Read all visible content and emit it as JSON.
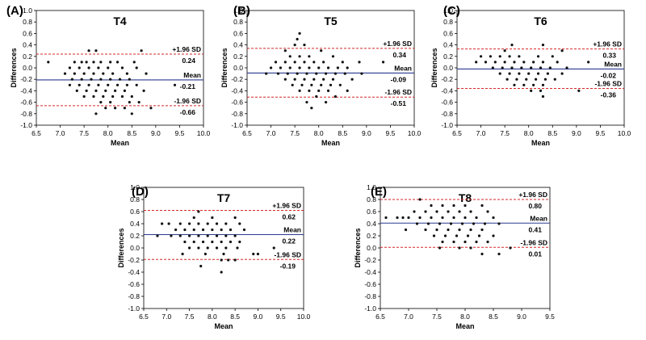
{
  "chart_data": [
    {
      "type": "scatter",
      "panel_label": "(A)",
      "title": "T4",
      "xlabel": "Mean",
      "ylabel": "Differences",
      "xlim": [
        6.5,
        10.0
      ],
      "ylim": [
        -1.0,
        1.0
      ],
      "xticks": [
        "6.5",
        "7.0",
        "7.5",
        "8.0",
        "8.5",
        "9.0",
        "9.5",
        "10.0"
      ],
      "yticks": [
        "-1.0",
        "-0.8",
        "-0.6",
        "-0.4",
        "-0.2",
        "0.0",
        "0.2",
        "0.4",
        "0.6",
        "0.8",
        "1.0"
      ],
      "upper_label": "+1.96 SD",
      "upper_value": "0.24",
      "upper": 0.24,
      "mean_label": "Mean",
      "mean_value": "-0.21",
      "mean": -0.21,
      "lower_label": "-1.96 SD",
      "lower_value": "-0.66",
      "lower": -0.66,
      "points": [
        [
          6.75,
          0.1
        ],
        [
          7.6,
          0.3
        ],
        [
          7.75,
          0.3
        ],
        [
          8.7,
          0.3
        ],
        [
          7.3,
          0.1
        ],
        [
          7.45,
          0.1
        ],
        [
          7.55,
          0.1
        ],
        [
          7.7,
          0.1
        ],
        [
          7.85,
          0.1
        ],
        [
          8.05,
          0.1
        ],
        [
          8.2,
          0.1
        ],
        [
          8.55,
          0.1
        ],
        [
          7.2,
          0.0
        ],
        [
          7.4,
          0.0
        ],
        [
          7.6,
          0.0
        ],
        [
          7.8,
          0.0
        ],
        [
          8.0,
          0.0
        ],
        [
          8.3,
          0.0
        ],
        [
          8.6,
          0.0
        ],
        [
          7.1,
          -0.1
        ],
        [
          7.3,
          -0.1
        ],
        [
          7.5,
          -0.1
        ],
        [
          7.7,
          -0.1
        ],
        [
          7.9,
          -0.1
        ],
        [
          8.1,
          -0.1
        ],
        [
          8.4,
          -0.1
        ],
        [
          8.8,
          -0.1
        ],
        [
          7.25,
          -0.2
        ],
        [
          7.45,
          -0.2
        ],
        [
          7.65,
          -0.2
        ],
        [
          7.85,
          -0.2
        ],
        [
          8.05,
          -0.2
        ],
        [
          8.25,
          -0.2
        ],
        [
          8.45,
          -0.2
        ],
        [
          7.2,
          -0.3
        ],
        [
          7.4,
          -0.3
        ],
        [
          7.6,
          -0.3
        ],
        [
          7.8,
          -0.3
        ],
        [
          8.0,
          -0.3
        ],
        [
          8.2,
          -0.3
        ],
        [
          8.4,
          -0.3
        ],
        [
          8.6,
          -0.3
        ],
        [
          9.4,
          -0.3
        ],
        [
          7.35,
          -0.4
        ],
        [
          7.55,
          -0.4
        ],
        [
          7.75,
          -0.4
        ],
        [
          7.95,
          -0.4
        ],
        [
          8.15,
          -0.4
        ],
        [
          8.35,
          -0.4
        ],
        [
          8.75,
          -0.4
        ],
        [
          7.5,
          -0.5
        ],
        [
          7.7,
          -0.5
        ],
        [
          7.9,
          -0.5
        ],
        [
          8.1,
          -0.5
        ],
        [
          8.3,
          -0.5
        ],
        [
          8.5,
          -0.5
        ],
        [
          7.85,
          -0.6
        ],
        [
          8.05,
          -0.6
        ],
        [
          8.45,
          -0.6
        ],
        [
          8.65,
          -0.6
        ],
        [
          7.95,
          -0.7
        ],
        [
          8.15,
          -0.7
        ],
        [
          8.35,
          -0.7
        ],
        [
          8.9,
          -0.7
        ],
        [
          7.75,
          -0.8
        ],
        [
          8.5,
          -0.8
        ]
      ]
    },
    {
      "type": "scatter",
      "panel_label": "(B)",
      "title": "T5",
      "xlabel": "Mean",
      "ylabel": "Differences",
      "xlim": [
        6.5,
        10.0
      ],
      "ylim": [
        -1.0,
        1.0
      ],
      "xticks": [
        "6.5",
        "7.0",
        "7.5",
        "8.0",
        "8.5",
        "9.0",
        "9.5",
        "10.0"
      ],
      "yticks": [
        "-1.0",
        "-0.8",
        "-0.6",
        "-0.4",
        "-0.2",
        "0.0",
        "0.2",
        "0.4",
        "0.6",
        "0.8",
        "1.0"
      ],
      "upper_label": "+1.96 SD",
      "upper_value": "0.34",
      "upper": 0.34,
      "mean_label": "Mean",
      "mean_value": "-0.09",
      "mean": -0.09,
      "lower_label": "-1.96 SD",
      "lower_value": "-0.51",
      "lower": -0.51,
      "points": [
        [
          7.6,
          0.6
        ],
        [
          7.55,
          0.5
        ],
        [
          7.5,
          0.4
        ],
        [
          7.7,
          0.4
        ],
        [
          8.05,
          0.3
        ],
        [
          7.3,
          0.3
        ],
        [
          7.4,
          0.2
        ],
        [
          7.6,
          0.2
        ],
        [
          7.8,
          0.2
        ],
        [
          8.3,
          0.2
        ],
        [
          7.1,
          0.1
        ],
        [
          7.3,
          0.1
        ],
        [
          7.5,
          0.1
        ],
        [
          7.7,
          0.1
        ],
        [
          7.9,
          0.1
        ],
        [
          8.1,
          0.1
        ],
        [
          8.5,
          0.1
        ],
        [
          8.85,
          0.1
        ],
        [
          9.35,
          0.1
        ],
        [
          7.0,
          0.0
        ],
        [
          7.2,
          0.0
        ],
        [
          7.4,
          0.0
        ],
        [
          7.6,
          0.0
        ],
        [
          7.8,
          0.0
        ],
        [
          8.0,
          0.0
        ],
        [
          8.2,
          0.0
        ],
        [
          8.4,
          0.0
        ],
        [
          8.6,
          0.0
        ],
        [
          6.9,
          -0.1
        ],
        [
          7.15,
          -0.1
        ],
        [
          7.35,
          -0.1
        ],
        [
          7.55,
          -0.1
        ],
        [
          7.75,
          -0.1
        ],
        [
          7.95,
          -0.1
        ],
        [
          8.15,
          -0.1
        ],
        [
          8.35,
          -0.1
        ],
        [
          8.55,
          -0.1
        ],
        [
          8.9,
          -0.1
        ],
        [
          7.3,
          -0.2
        ],
        [
          7.5,
          -0.2
        ],
        [
          7.7,
          -0.2
        ],
        [
          7.9,
          -0.2
        ],
        [
          8.1,
          -0.2
        ],
        [
          8.3,
          -0.2
        ],
        [
          8.7,
          -0.2
        ],
        [
          7.45,
          -0.3
        ],
        [
          7.65,
          -0.3
        ],
        [
          7.85,
          -0.3
        ],
        [
          8.05,
          -0.3
        ],
        [
          8.25,
          -0.3
        ],
        [
          8.45,
          -0.3
        ],
        [
          7.6,
          -0.4
        ],
        [
          7.8,
          -0.4
        ],
        [
          8.0,
          -0.4
        ],
        [
          8.2,
          -0.4
        ],
        [
          8.6,
          -0.4
        ],
        [
          7.95,
          -0.5
        ],
        [
          8.35,
          -0.5
        ],
        [
          7.75,
          -0.6
        ],
        [
          8.15,
          -0.6
        ],
        [
          7.85,
          -0.7
        ]
      ]
    },
    {
      "type": "scatter",
      "panel_label": "(C)",
      "title": "T6",
      "xlabel": "Mean",
      "ylabel": "Differences",
      "xlim": [
        6.5,
        10.0
      ],
      "ylim": [
        -1.0,
        1.0
      ],
      "xticks": [
        "6.5",
        "7.0",
        "7.5",
        "8.0",
        "8.5",
        "9.0",
        "9.5",
        "10.0"
      ],
      "yticks": [
        "-1.0",
        "-0.8",
        "-0.6",
        "-0.4",
        "-0.2",
        "0.0",
        "0.2",
        "0.4",
        "0.6",
        "0.8",
        "1.0"
      ],
      "upper_label": "+1.96 SD",
      "upper_value": "0.33",
      "upper": 0.33,
      "mean_label": "Mean",
      "mean_value": "-0.02",
      "mean": -0.02,
      "lower_label": "-1.96 SD",
      "lower_value": "-0.36",
      "lower": -0.36,
      "points": [
        [
          7.65,
          0.4
        ],
        [
          8.3,
          0.4
        ],
        [
          7.5,
          0.3
        ],
        [
          8.7,
          0.3
        ],
        [
          7.0,
          0.2
        ],
        [
          7.2,
          0.2
        ],
        [
          7.4,
          0.2
        ],
        [
          7.6,
          0.2
        ],
        [
          7.8,
          0.2
        ],
        [
          8.2,
          0.2
        ],
        [
          8.5,
          0.2
        ],
        [
          6.9,
          0.1
        ],
        [
          7.1,
          0.1
        ],
        [
          7.3,
          0.1
        ],
        [
          7.5,
          0.1
        ],
        [
          7.7,
          0.1
        ],
        [
          7.9,
          0.1
        ],
        [
          8.1,
          0.1
        ],
        [
          8.3,
          0.1
        ],
        [
          8.6,
          0.1
        ],
        [
          9.25,
          0.1
        ],
        [
          7.25,
          0.0
        ],
        [
          7.45,
          0.0
        ],
        [
          7.65,
          0.0
        ],
        [
          7.85,
          0.0
        ],
        [
          8.05,
          0.0
        ],
        [
          8.25,
          0.0
        ],
        [
          8.45,
          0.0
        ],
        [
          8.8,
          0.0
        ],
        [
          7.4,
          -0.1
        ],
        [
          7.6,
          -0.1
        ],
        [
          7.8,
          -0.1
        ],
        [
          8.0,
          -0.1
        ],
        [
          8.2,
          -0.1
        ],
        [
          8.4,
          -0.1
        ],
        [
          8.7,
          -0.1
        ],
        [
          7.55,
          -0.2
        ],
        [
          7.75,
          -0.2
        ],
        [
          7.95,
          -0.2
        ],
        [
          8.15,
          -0.2
        ],
        [
          8.35,
          -0.2
        ],
        [
          8.55,
          -0.2
        ],
        [
          7.7,
          -0.3
        ],
        [
          7.9,
          -0.3
        ],
        [
          8.1,
          -0.3
        ],
        [
          8.3,
          -0.3
        ],
        [
          8.05,
          -0.4
        ],
        [
          8.25,
          -0.4
        ],
        [
          9.05,
          -0.4
        ],
        [
          8.3,
          -0.5
        ]
      ]
    },
    {
      "type": "scatter",
      "panel_label": "(D)",
      "title": "T7",
      "xlabel": "Mean",
      "ylabel": "Differences",
      "xlim": [
        6.5,
        10.0
      ],
      "ylim": [
        -1.0,
        1.0
      ],
      "xticks": [
        "6.5",
        "7.0",
        "7.5",
        "8.0",
        "8.5",
        "9.0",
        "9.5",
        "10.0"
      ],
      "yticks": [
        "-1.0",
        "-0.8",
        "-0.6",
        "-0.4",
        "-0.2",
        "0.0",
        "0.2",
        "0.4",
        "0.6",
        "0.8",
        "1.0"
      ],
      "upper_label": "+1.96 SD",
      "upper_value": "0.62",
      "upper": 0.62,
      "mean_label": "Mean",
      "mean_value": "0.22",
      "mean": 0.22,
      "lower_label": "-1.96 SD",
      "lower_value": "-0.19",
      "lower": -0.19,
      "points": [
        [
          7.7,
          0.6
        ],
        [
          7.6,
          0.5
        ],
        [
          8.0,
          0.5
        ],
        [
          8.5,
          0.5
        ],
        [
          6.9,
          0.4
        ],
        [
          7.05,
          0.4
        ],
        [
          7.3,
          0.4
        ],
        [
          7.5,
          0.4
        ],
        [
          7.7,
          0.4
        ],
        [
          7.9,
          0.4
        ],
        [
          8.1,
          0.4
        ],
        [
          8.3,
          0.4
        ],
        [
          8.6,
          0.4
        ],
        [
          7.2,
          0.3
        ],
        [
          7.4,
          0.3
        ],
        [
          7.6,
          0.3
        ],
        [
          7.8,
          0.3
        ],
        [
          8.0,
          0.3
        ],
        [
          8.2,
          0.3
        ],
        [
          8.4,
          0.3
        ],
        [
          8.7,
          0.3
        ],
        [
          6.8,
          0.2
        ],
        [
          7.1,
          0.2
        ],
        [
          7.3,
          0.2
        ],
        [
          7.5,
          0.2
        ],
        [
          7.7,
          0.2
        ],
        [
          7.9,
          0.2
        ],
        [
          8.1,
          0.2
        ],
        [
          8.3,
          0.2
        ],
        [
          8.5,
          0.2
        ],
        [
          7.4,
          0.1
        ],
        [
          7.6,
          0.1
        ],
        [
          7.8,
          0.1
        ],
        [
          8.0,
          0.1
        ],
        [
          8.2,
          0.1
        ],
        [
          8.4,
          0.1
        ],
        [
          8.6,
          0.1
        ],
        [
          7.5,
          0.0
        ],
        [
          7.7,
          0.0
        ],
        [
          7.9,
          0.0
        ],
        [
          8.1,
          0.0
        ],
        [
          8.3,
          0.0
        ],
        [
          8.55,
          0.0
        ],
        [
          9.35,
          0.0
        ],
        [
          7.35,
          -0.1
        ],
        [
          7.85,
          -0.1
        ],
        [
          8.25,
          -0.1
        ],
        [
          8.9,
          -0.1
        ],
        [
          9.0,
          -0.1
        ],
        [
          8.2,
          -0.2
        ],
        [
          8.35,
          -0.2
        ],
        [
          8.5,
          -0.2
        ],
        [
          7.75,
          -0.3
        ],
        [
          8.2,
          -0.4
        ]
      ]
    },
    {
      "type": "scatter",
      "panel_label": "(E)",
      "title": "T8",
      "xlabel": "Mean",
      "ylabel": "Differences",
      "xlim": [
        6.5,
        9.5
      ],
      "ylim": [
        -1.0,
        1.0
      ],
      "xticks": [
        "6.5",
        "7.0",
        "7.5",
        "8.0",
        "8.5",
        "9.0",
        "9.5"
      ],
      "yticks": [
        "-1.0",
        "-0.8",
        "-0.6",
        "-0.4",
        "-0.2",
        "0.0",
        "0.2",
        "0.4",
        "0.6",
        "0.8",
        "1.0"
      ],
      "upper_label": "+1.96 SD",
      "upper_value": "0.80",
      "upper": 0.8,
      "mean_label": "Mean",
      "mean_value": "0.41",
      "mean": 0.41,
      "lower_label": "-1.96 SD",
      "lower_value": "0.01",
      "lower": 0.01,
      "points": [
        [
          7.2,
          0.8
        ],
        [
          7.4,
          0.7
        ],
        [
          7.6,
          0.7
        ],
        [
          7.8,
          0.7
        ],
        [
          8.0,
          0.7
        ],
        [
          8.3,
          0.7
        ],
        [
          7.1,
          0.6
        ],
        [
          7.3,
          0.6
        ],
        [
          7.5,
          0.6
        ],
        [
          7.7,
          0.6
        ],
        [
          7.9,
          0.6
        ],
        [
          8.1,
          0.6
        ],
        [
          8.4,
          0.6
        ],
        [
          6.6,
          0.5
        ],
        [
          6.8,
          0.5
        ],
        [
          6.9,
          0.5
        ],
        [
          7.0,
          0.5
        ],
        [
          7.2,
          0.5
        ],
        [
          7.4,
          0.5
        ],
        [
          7.6,
          0.5
        ],
        [
          7.8,
          0.5
        ],
        [
          8.0,
          0.5
        ],
        [
          8.2,
          0.5
        ],
        [
          8.5,
          0.5
        ],
        [
          7.15,
          0.4
        ],
        [
          7.35,
          0.4
        ],
        [
          7.55,
          0.4
        ],
        [
          7.75,
          0.4
        ],
        [
          7.95,
          0.4
        ],
        [
          8.15,
          0.4
        ],
        [
          8.35,
          0.4
        ],
        [
          8.6,
          0.4
        ],
        [
          6.95,
          0.3
        ],
        [
          7.3,
          0.3
        ],
        [
          7.5,
          0.3
        ],
        [
          7.7,
          0.3
        ],
        [
          7.9,
          0.3
        ],
        [
          8.1,
          0.3
        ],
        [
          8.3,
          0.3
        ],
        [
          7.45,
          0.2
        ],
        [
          7.65,
          0.2
        ],
        [
          7.85,
          0.2
        ],
        [
          8.05,
          0.2
        ],
        [
          8.25,
          0.2
        ],
        [
          8.5,
          0.2
        ],
        [
          7.6,
          0.1
        ],
        [
          7.8,
          0.1
        ],
        [
          8.0,
          0.1
        ],
        [
          8.2,
          0.1
        ],
        [
          8.4,
          0.1
        ],
        [
          7.55,
          0.0
        ],
        [
          7.9,
          0.0
        ],
        [
          8.1,
          0.0
        ],
        [
          8.8,
          0.0
        ],
        [
          8.3,
          -0.1
        ],
        [
          8.6,
          -0.1
        ]
      ]
    }
  ]
}
